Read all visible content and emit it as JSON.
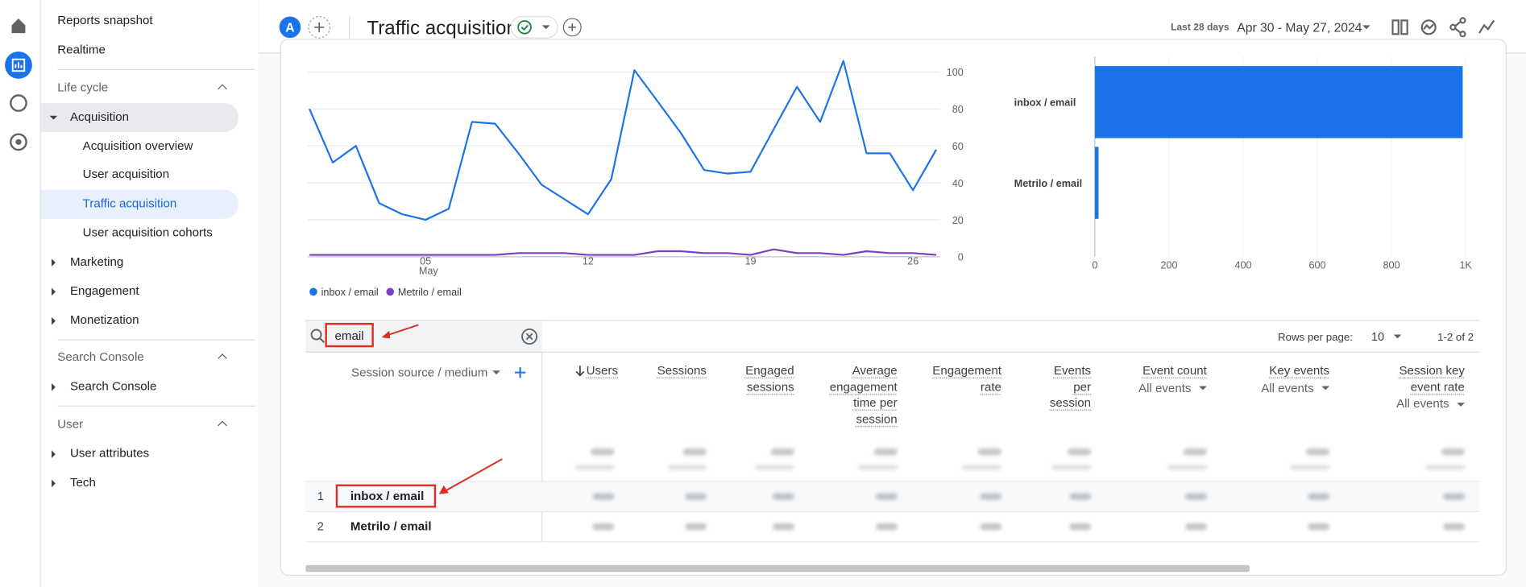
{
  "header": {
    "avatar": "A",
    "title": "Traffic acquisition",
    "date_range_label": "Last 28 days",
    "date_range": "Apr 30 - May 27, 2024"
  },
  "nav": [
    "Reports snapshot",
    "Realtime",
    "Life cycle",
    "Acquisition",
    "Acquisition overview",
    "User acquisition",
    "Traffic acquisition",
    "User acquisition cohorts",
    "Marketing",
    "Engagement",
    "Monetization",
    "Search Console",
    "Search Console",
    "User",
    "User attributes",
    "Tech"
  ],
  "line_chart": {
    "type": "line",
    "categories": [
      null,
      null,
      null,
      null,
      null,
      "05",
      null,
      null,
      null,
      null,
      null,
      null,
      "12",
      null,
      null,
      null,
      null,
      null,
      null,
      "19",
      null,
      null,
      null,
      null,
      null,
      null,
      "26",
      null
    ],
    "month_label": "May",
    "series": [
      {
        "name": "inbox / email",
        "color": "#1a73e8",
        "values": [
          80,
          51,
          60,
          29,
          23,
          20,
          26,
          73,
          72,
          56,
          39,
          31,
          23,
          42,
          101,
          84,
          67,
          47,
          45,
          46,
          69,
          92,
          73,
          106,
          56,
          56,
          36,
          58
        ]
      },
      {
        "name": "Metrilo / email",
        "color": "#7b3fc4",
        "values": [
          1,
          1,
          1,
          1,
          1,
          1,
          1,
          1,
          1,
          2,
          2,
          2,
          1,
          1,
          1,
          3,
          3,
          2,
          2,
          1,
          4,
          2,
          2,
          1,
          3,
          2,
          2,
          1
        ]
      }
    ],
    "ylim": [
      0,
      110
    ],
    "yticks": [
      0,
      20,
      40,
      60,
      80,
      100
    ],
    "grid": true
  },
  "bar_chart": {
    "type": "bar",
    "categories": [
      "inbox / email",
      "Metrilo / email"
    ],
    "values": [
      992,
      10
    ],
    "color": "#1a73e8",
    "xlim": [
      0,
      1000
    ],
    "xticks": [
      0,
      200,
      400,
      600,
      800,
      {
        "value": 1000,
        "label": "1K"
      }
    ]
  },
  "table": {
    "search": "email",
    "rows_per_page_label": "Rows per page:",
    "rows_per_page": "10",
    "pagination": "1-2 of 2",
    "dimension": "Session source / medium",
    "columns": [
      {
        "label": "Users"
      },
      {
        "label": "Sessions"
      },
      {
        "label": "Engaged sessions"
      },
      {
        "label": "Average engagement time per session"
      },
      {
        "label": "Engagement rate"
      },
      {
        "label": "Events per session"
      },
      {
        "label": "Event count",
        "filter": "All events"
      },
      {
        "label": "Key events",
        "filter": "All events"
      },
      {
        "label": "Session key event rate",
        "filter": "All events"
      }
    ],
    "rows": [
      [
        1,
        "inbox / email"
      ],
      [
        2,
        "Metrilo / email"
      ]
    ]
  }
}
